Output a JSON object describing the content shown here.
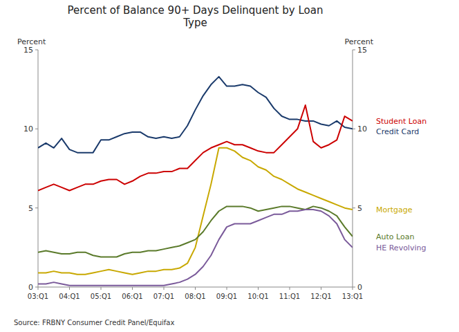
{
  "chart_data": {
    "type": "line",
    "title": "Percent of Balance 90+ Days Delinquent by Loan\nType",
    "ylabel": "Percent",
    "y2label": "Percent",
    "source": "Source: FRBNY Consumer Credit Panel/Equifax",
    "categories": [
      "03:Q1",
      null,
      null,
      null,
      "04:Q1",
      null,
      null,
      null,
      "05:Q1",
      null,
      null,
      null,
      "06:Q1",
      null,
      null,
      null,
      "07:Q1",
      null,
      null,
      null,
      "08:Q1",
      null,
      null,
      null,
      "09:Q1",
      null,
      null,
      null,
      "10:Q1",
      null,
      null,
      null,
      "11:Q1",
      null,
      null,
      null,
      "12:Q1",
      null,
      null,
      null,
      "13:Q1"
    ],
    "ylim": [
      0,
      15
    ],
    "yticks": [
      0,
      5,
      10,
      15
    ],
    "y2lim": [
      0,
      15
    ],
    "y2ticks": [
      0,
      5,
      10,
      15
    ],
    "grid": false,
    "series": [
      {
        "name": "Credit Card",
        "color": "#1a3a6b",
        "values": [
          8.8,
          9.1,
          8.8,
          9.4,
          8.7,
          8.5,
          8.5,
          8.5,
          9.3,
          9.3,
          9.5,
          9.7,
          9.8,
          9.8,
          9.5,
          9.4,
          9.5,
          9.4,
          9.5,
          10.2,
          11.2,
          12.1,
          12.8,
          13.3,
          12.7,
          12.7,
          12.8,
          12.7,
          12.3,
          12.0,
          11.3,
          10.8,
          10.6,
          10.6,
          10.5,
          10.5,
          10.3,
          10.2,
          10.5,
          10.1,
          10.0
        ]
      },
      {
        "name": "Student Loan",
        "color": "#cc0000",
        "values": [
          6.1,
          6.3,
          6.5,
          6.3,
          6.1,
          6.3,
          6.5,
          6.5,
          6.7,
          6.8,
          6.8,
          6.5,
          6.7,
          7.0,
          7.2,
          7.2,
          7.3,
          7.3,
          7.5,
          7.5,
          8.0,
          8.5,
          8.8,
          9.0,
          9.2,
          9.0,
          9.0,
          8.8,
          8.6,
          8.5,
          8.5,
          9.0,
          9.5,
          10.0,
          11.5,
          9.2,
          8.8,
          9.0,
          9.3,
          10.8,
          10.5
        ]
      },
      {
        "name": "Mortgage",
        "color": "#c8a800",
        "values": [
          0.9,
          0.9,
          1.0,
          0.9,
          0.9,
          0.8,
          0.8,
          0.9,
          1.0,
          1.1,
          1.0,
          0.9,
          0.8,
          0.9,
          1.0,
          1.0,
          1.1,
          1.1,
          1.2,
          1.5,
          2.5,
          4.5,
          6.5,
          8.8,
          8.8,
          8.6,
          8.2,
          8.0,
          7.6,
          7.4,
          7.0,
          6.8,
          6.5,
          6.2,
          6.0,
          5.8,
          5.6,
          5.4,
          5.2,
          5.0,
          4.9
        ]
      },
      {
        "name": "Auto Loan",
        "color": "#5a7a2a",
        "values": [
          2.2,
          2.3,
          2.2,
          2.1,
          2.1,
          2.2,
          2.2,
          2.0,
          1.9,
          1.9,
          1.9,
          2.1,
          2.2,
          2.2,
          2.3,
          2.3,
          2.4,
          2.5,
          2.6,
          2.8,
          3.0,
          3.5,
          4.2,
          4.8,
          5.1,
          5.1,
          5.1,
          5.0,
          4.8,
          4.9,
          5.0,
          5.1,
          5.1,
          5.0,
          4.9,
          5.1,
          5.0,
          4.8,
          4.5,
          3.8,
          3.2
        ]
      },
      {
        "name": "HE Revolving",
        "color": "#7a5a9a",
        "values": [
          0.2,
          0.2,
          0.3,
          0.2,
          0.1,
          0.1,
          0.1,
          0.1,
          0.1,
          0.1,
          0.1,
          0.1,
          0.1,
          0.1,
          0.1,
          0.1,
          0.1,
          0.2,
          0.3,
          0.5,
          0.8,
          1.3,
          2.0,
          3.0,
          3.8,
          4.0,
          4.0,
          4.0,
          4.2,
          4.4,
          4.6,
          4.6,
          4.8,
          4.8,
          4.9,
          4.9,
          4.8,
          4.5,
          4.0,
          3.0,
          2.5
        ]
      }
    ]
  }
}
